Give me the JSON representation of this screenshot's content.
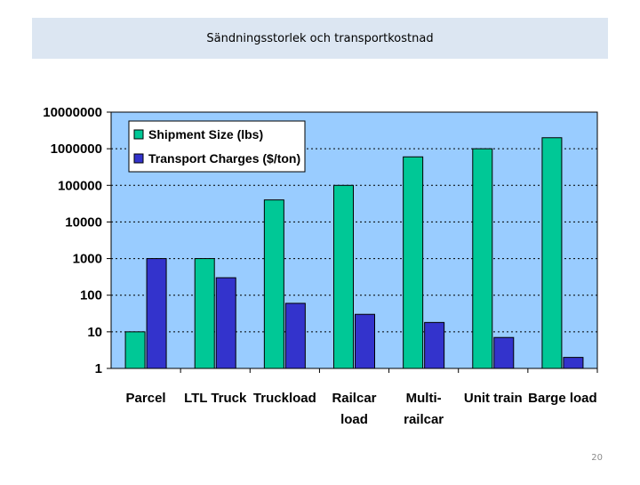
{
  "slide": {
    "title": "Sändningsstorlek och transportkostnad",
    "page_number": "20"
  },
  "colors": {
    "plot_bg": "#99ccff",
    "series_1": "#00c896",
    "series_2": "#3333cc",
    "title_bar": "#dce6f2"
  },
  "chart_data": {
    "type": "bar",
    "scale": "log",
    "ylim": [
      1,
      10000000
    ],
    "y_ticks": [
      "1",
      "10",
      "100",
      "1000",
      "10000",
      "100000",
      "1000000",
      "10000000"
    ],
    "grid": "horizontal dotted",
    "legend_position": "top-left",
    "categories": [
      [
        "Parcel"
      ],
      [
        "LTL Truck"
      ],
      [
        "Truckload"
      ],
      [
        "Railcar",
        "load"
      ],
      [
        "Multi-",
        "railcar"
      ],
      [
        "Unit train"
      ],
      [
        "Barge load"
      ]
    ],
    "series": [
      {
        "name": "Shipment Size (lbs)",
        "values": [
          10,
          1000,
          40000,
          100000,
          600000,
          1000000,
          2000000
        ]
      },
      {
        "name": "Transport Charges ($/ton)",
        "values": [
          1000,
          300,
          60,
          30,
          18,
          7,
          2
        ]
      }
    ]
  }
}
